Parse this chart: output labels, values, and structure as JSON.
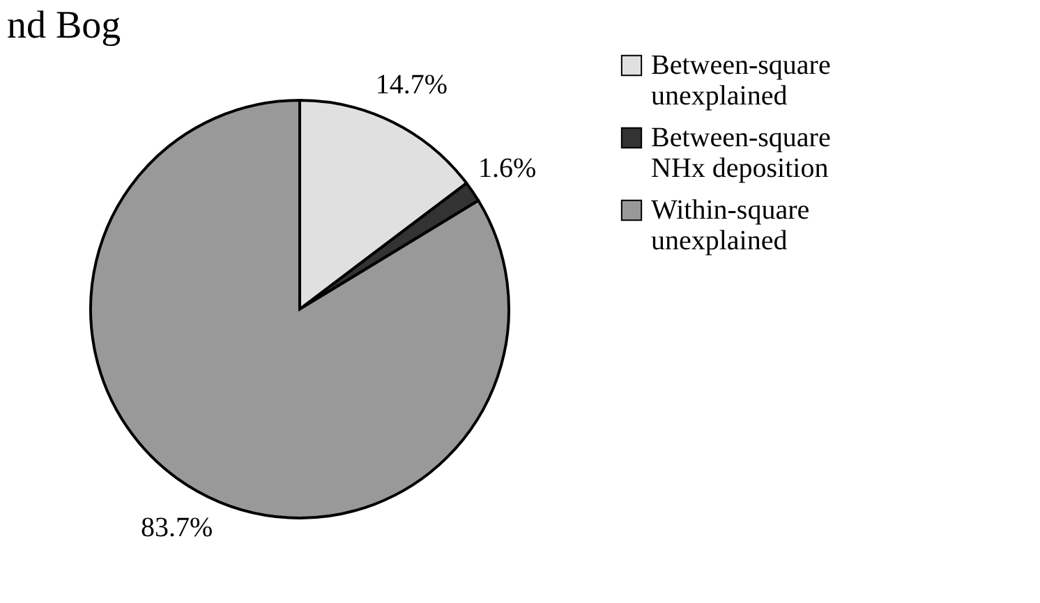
{
  "chart_data": {
    "type": "pie",
    "title": "nd Bog",
    "categories": [
      "Between-square unexplained",
      "Between-square NHx deposition",
      "Within-square unexplained"
    ],
    "values": [
      14.7,
      1.6,
      83.7
    ],
    "colors": [
      "#e0e0e0",
      "#333333",
      "#999999"
    ],
    "value_labels": [
      "14.7%",
      "1.6%",
      "83.7%"
    ],
    "legend": "right"
  }
}
